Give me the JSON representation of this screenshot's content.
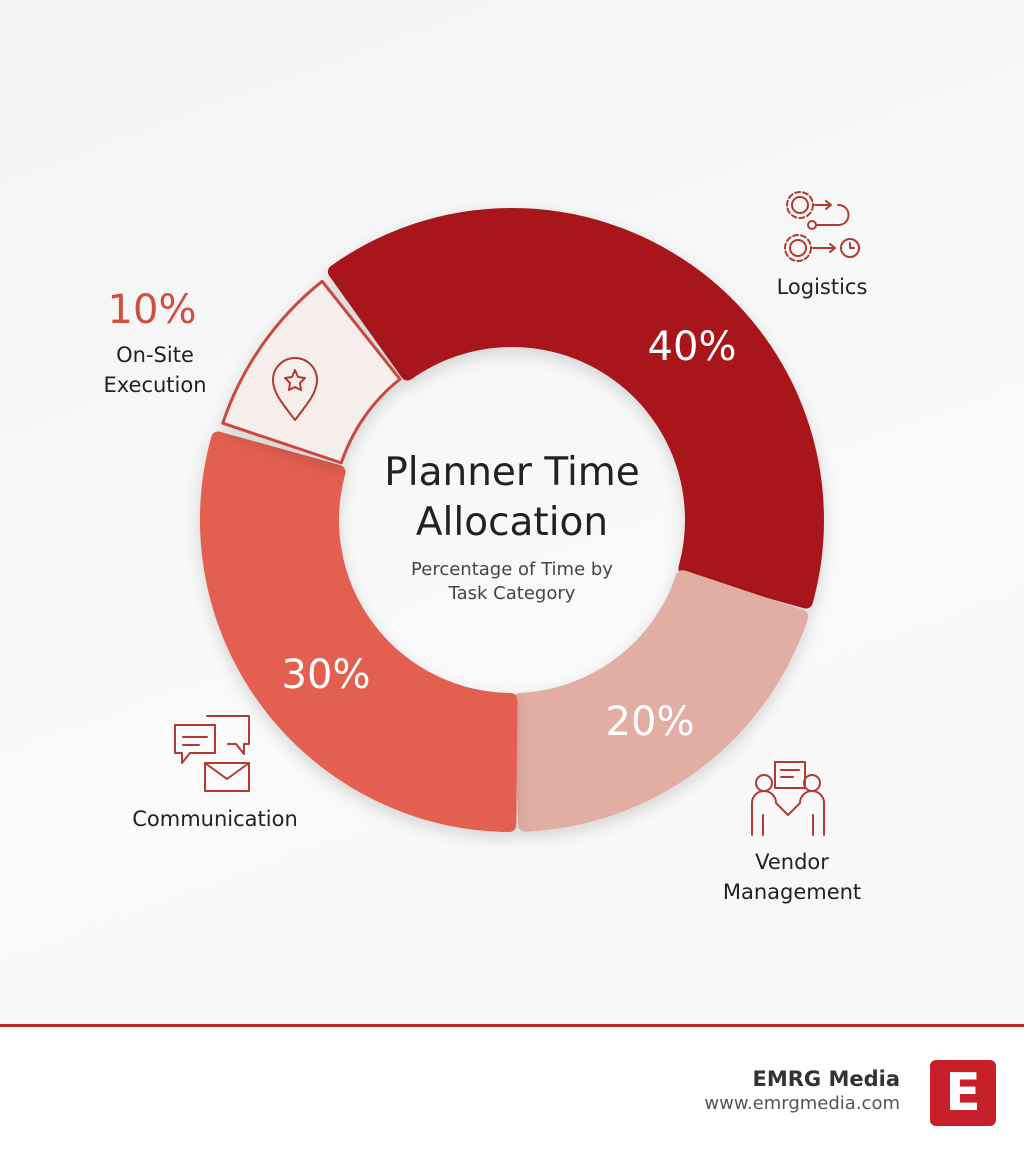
{
  "chart_data": {
    "type": "pie",
    "donut": true,
    "title": "Planner Time Allocation",
    "subtitle": "Percentage of Time by Task Category",
    "categories": [
      "Logistics",
      "Vendor Management",
      "Communication",
      "On-Site Execution"
    ],
    "values": [
      40,
      20,
      30,
      10
    ],
    "value_labels": [
      "40%",
      "20%",
      "30%",
      "10%"
    ],
    "colors": [
      "#a8181c",
      "#e2aea4",
      "#e35f50",
      "#f6eeec"
    ]
  },
  "footer": {
    "brand": "EMRG Media",
    "url": "www.emrgmedia.com",
    "logo": "E"
  }
}
